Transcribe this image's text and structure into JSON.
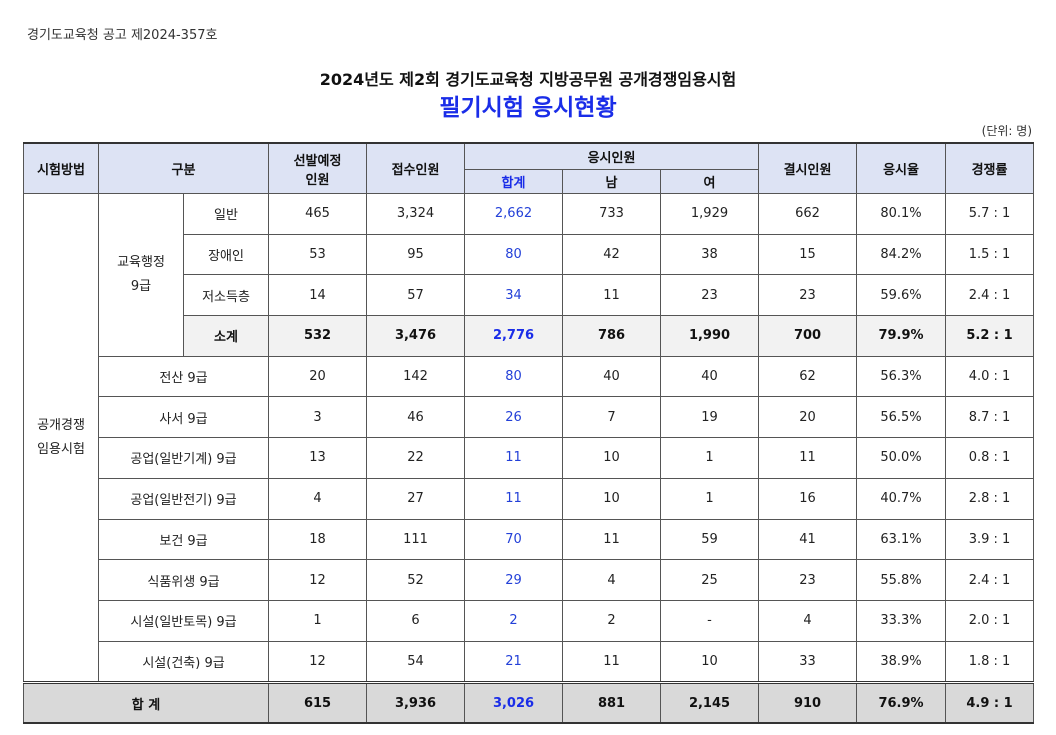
{
  "notice": "경기도교육청 공고 제2024-357호",
  "title_line1": "2024년도 제2회 경기도교육청 지방공무원 공개경쟁임용시험",
  "title_line2": "필기시험 응시현황",
  "unit": "(단위: 명)",
  "headers": {
    "method": "시험방법",
    "category": "구분",
    "planned_line1": "선발예정",
    "planned_line2": "인원",
    "applied": "접수인원",
    "examinees": "응시인원",
    "total": "합계",
    "male": "남",
    "female": "여",
    "absent": "결시인원",
    "rate": "응시율",
    "competition": "경쟁률"
  },
  "method": [
    "공개경쟁",
    "임용시험"
  ],
  "admin_group": [
    "교육행정",
    "9급"
  ],
  "rows": [
    {
      "label": "일반",
      "planned": "465",
      "applied": "3,324",
      "total": "2,662",
      "male": "733",
      "female": "1,929",
      "absent": "662",
      "rate": "80.1%",
      "competition": "5.7 : 1"
    },
    {
      "label": "장애인",
      "planned": "53",
      "applied": "95",
      "total": "80",
      "male": "42",
      "female": "38",
      "absent": "15",
      "rate": "84.2%",
      "competition": "1.5 : 1"
    },
    {
      "label": "저소득층",
      "planned": "14",
      "applied": "57",
      "total": "34",
      "male": "11",
      "female": "23",
      "absent": "23",
      "rate": "59.6%",
      "competition": "2.4 : 1"
    },
    {
      "label": "소계",
      "planned": "532",
      "applied": "3,476",
      "total": "2,776",
      "male": "786",
      "female": "1,990",
      "absent": "700",
      "rate": "79.9%",
      "competition": "5.2 : 1"
    },
    {
      "label": "전산 9급",
      "planned": "20",
      "applied": "142",
      "total": "80",
      "male": "40",
      "female": "40",
      "absent": "62",
      "rate": "56.3%",
      "competition": "4.0 : 1"
    },
    {
      "label": "사서 9급",
      "planned": "3",
      "applied": "46",
      "total": "26",
      "male": "7",
      "female": "19",
      "absent": "20",
      "rate": "56.5%",
      "competition": "8.7 : 1"
    },
    {
      "label": "공업(일반기계) 9급",
      "planned": "13",
      "applied": "22",
      "total": "11",
      "male": "10",
      "female": "1",
      "absent": "11",
      "rate": "50.0%",
      "competition": "0.8 : 1"
    },
    {
      "label": "공업(일반전기) 9급",
      "planned": "4",
      "applied": "27",
      "total": "11",
      "male": "10",
      "female": "1",
      "absent": "16",
      "rate": "40.7%",
      "competition": "2.8 : 1"
    },
    {
      "label": "보건 9급",
      "planned": "18",
      "applied": "111",
      "total": "70",
      "male": "11",
      "female": "59",
      "absent": "41",
      "rate": "63.1%",
      "competition": "3.9 : 1"
    },
    {
      "label": "식품위생 9급",
      "planned": "12",
      "applied": "52",
      "total": "29",
      "male": "4",
      "female": "25",
      "absent": "23",
      "rate": "55.8%",
      "competition": "2.4 : 1"
    },
    {
      "label": "시설(일반토목) 9급",
      "planned": "1",
      "applied": "6",
      "total": "2",
      "male": "2",
      "female": "-",
      "absent": "4",
      "rate": "33.3%",
      "competition": "2.0 : 1"
    },
    {
      "label": "시설(건축) 9급",
      "planned": "12",
      "applied": "54",
      "total": "21",
      "male": "11",
      "female": "10",
      "absent": "33",
      "rate": "38.9%",
      "competition": "1.8 : 1"
    }
  ],
  "grand_total": {
    "label": "합 계",
    "planned": "615",
    "applied": "3,936",
    "total": "3,026",
    "male": "881",
    "female": "2,145",
    "absent": "910",
    "rate": "76.9%",
    "competition": "4.9 : 1"
  }
}
